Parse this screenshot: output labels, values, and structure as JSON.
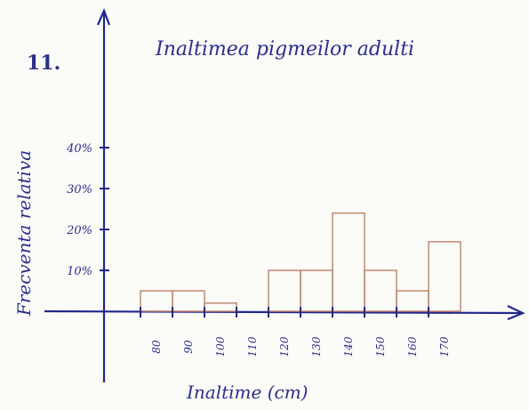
{
  "chart_data": {
    "type": "bar",
    "problem_number": "11.",
    "title": "Inaltimea pigmeilor adulti",
    "xlabel": "Inaltime (cm)",
    "ylabel": "Frecventa relativa",
    "x_tick_labels": [
      "80",
      "90",
      "100",
      "110",
      "120",
      "130",
      "140",
      "150",
      "160",
      "170"
    ],
    "y_tick_labels": [
      "10%",
      "20%",
      "30%",
      "40%"
    ],
    "y_ticks": [
      10,
      20,
      30,
      40
    ],
    "bins": [
      {
        "from": 80,
        "to": 90,
        "value": 5
      },
      {
        "from": 90,
        "to": 100,
        "value": 5
      },
      {
        "from": 100,
        "to": 110,
        "value": 2
      },
      {
        "from": 110,
        "to": 120,
        "value": 0
      },
      {
        "from": 120,
        "to": 130,
        "value": 10
      },
      {
        "from": 130,
        "to": 140,
        "value": 10
      },
      {
        "from": 140,
        "to": 150,
        "value": 24
      },
      {
        "from": 150,
        "to": 160,
        "value": 10
      },
      {
        "from": 160,
        "to": 170,
        "value": 5
      },
      {
        "from": 170,
        "to": 180,
        "value": 17
      }
    ],
    "grid": false,
    "colors": {
      "ink": "#23278a",
      "bars": "#c0806a"
    }
  }
}
